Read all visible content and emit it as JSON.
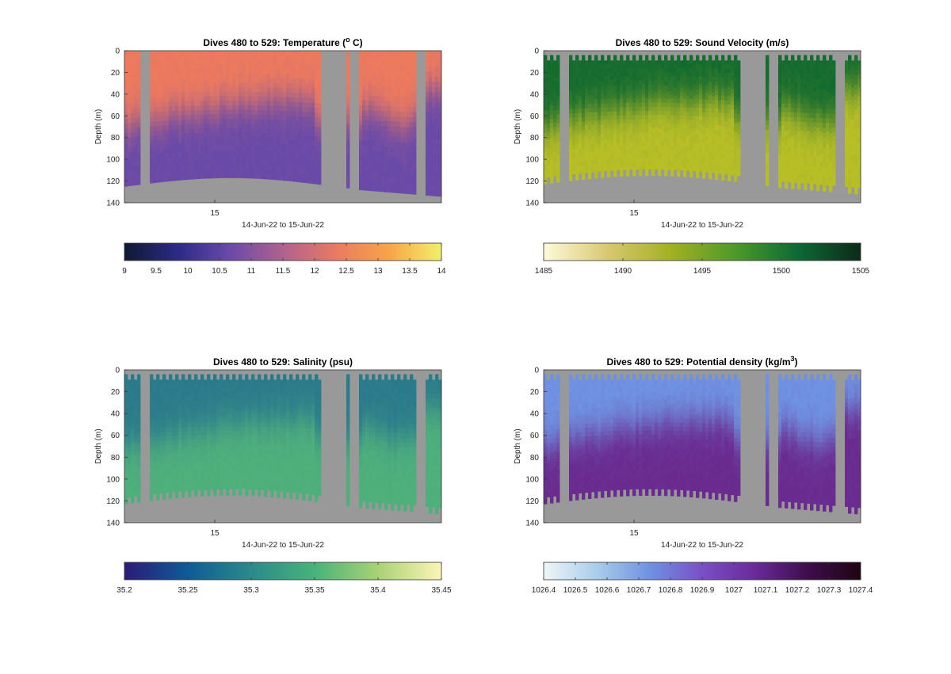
{
  "chart_data": [
    {
      "type": "heatmap",
      "title": "Dives 480 to 529: Temperature (",
      "title_sup": "o",
      "title_end": " C)",
      "xlabel": "14-Jun-22 to 15-Jun-22",
      "ylabel": "Depth (m)",
      "x_ticks": [
        "15"
      ],
      "y_ticks": [
        0,
        20,
        40,
        60,
        80,
        100,
        120,
        140
      ],
      "ylim": [
        0,
        140
      ],
      "colorbar": {
        "min": 9,
        "max": 14,
        "ticks": [
          "9",
          "9.5",
          "10",
          "10.5",
          "11",
          "11.5",
          "12",
          "12.5",
          "13",
          "13.5",
          "14"
        ],
        "colors": [
          "#0d1a33",
          "#2c2a86",
          "#6a4aa8",
          "#b0628e",
          "#e87a62",
          "#f7a448",
          "#f2f06a"
        ]
      },
      "surface_color": "#ee7a5e",
      "deep_color": "#6a4aa8",
      "missing_color": "#999999"
    },
    {
      "type": "heatmap",
      "title": "Dives 480 to 529: Sound Velocity (m/s)",
      "xlabel": "14-Jun-22 to 15-Jun-22",
      "ylabel": "Depth (m)",
      "x_ticks": [
        "15"
      ],
      "y_ticks": [
        0,
        20,
        40,
        60,
        80,
        100,
        120,
        140
      ],
      "ylim": [
        0,
        140
      ],
      "colorbar": {
        "min": 1485,
        "max": 1505,
        "ticks": [
          "1485",
          "1490",
          "1495",
          "1500",
          "1505"
        ],
        "colors": [
          "#fdfbd9",
          "#d8c873",
          "#a3b122",
          "#4e9a2a",
          "#0e6a35",
          "#0c2a18"
        ]
      },
      "surface_color": "#146b2f",
      "deep_color": "#b8be26",
      "missing_color": "#999999"
    },
    {
      "type": "heatmap",
      "title": "Dives 480 to 529: Salinity (psu)",
      "xlabel": "14-Jun-22 to 15-Jun-22",
      "ylabel": "Depth (m)",
      "x_ticks": [
        "15"
      ],
      "y_ticks": [
        0,
        20,
        40,
        60,
        80,
        100,
        120,
        140
      ],
      "ylim": [
        0,
        140
      ],
      "colorbar": {
        "min": 35.2,
        "max": 35.45,
        "ticks": [
          "35.2",
          "35.25",
          "35.3",
          "35.35",
          "35.4",
          "35.45"
        ],
        "colors": [
          "#2a1b78",
          "#0f5b96",
          "#2b8a8a",
          "#48b37a",
          "#a9d276",
          "#fdf5b6"
        ]
      },
      "surface_color": "#2b7a8c",
      "deep_color": "#4fb07c",
      "missing_color": "#999999"
    },
    {
      "type": "heatmap",
      "title": "Dives 480 to 529: Potential density (kg/m",
      "title_sup": "3",
      "title_end": ")",
      "xlabel": "14-Jun-22 to 15-Jun-22",
      "ylabel": "Depth (m)",
      "x_ticks": [
        "15"
      ],
      "y_ticks": [
        0,
        20,
        40,
        60,
        80,
        100,
        120,
        140
      ],
      "ylim": [
        0,
        140
      ],
      "colorbar": {
        "min": 1026.4,
        "max": 1027.4,
        "ticks": [
          "1026.4",
          "1026.5",
          "1026.6",
          "1026.7",
          "1026.8",
          "1026.9",
          "1027",
          "1027.1",
          "1027.2",
          "1027.3",
          "1027.4"
        ],
        "colors": [
          "#eef6f8",
          "#a9cdea",
          "#6f92e2",
          "#7a4fc6",
          "#6a2a9a",
          "#3e0d4c",
          "#1e0512"
        ]
      },
      "surface_color": "#6f92e2",
      "deep_color": "#6a2a8e",
      "missing_color": "#999999"
    }
  ]
}
